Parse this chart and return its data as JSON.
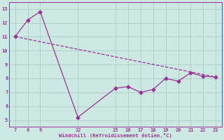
{
  "line1_x": [
    7,
    8,
    9,
    12,
    15,
    16,
    17,
    18,
    19,
    20,
    21,
    22,
    23
  ],
  "line1_y": [
    11.0,
    12.2,
    12.8,
    5.2,
    7.3,
    7.4,
    7.0,
    7.2,
    8.0,
    7.8,
    8.4,
    8.15,
    8.1
  ],
  "line2_x": [
    7,
    23
  ],
  "line2_y": [
    11.0,
    8.1
  ],
  "color": "#993399",
  "bg_color": "#cce8e0",
  "grid_color": "#aacccc",
  "xlabel": "Windchill (Refroidissement éolien,°C)",
  "xlim": [
    6.5,
    23.5
  ],
  "ylim": [
    4.5,
    13.5
  ],
  "xticks": [
    7,
    8,
    9,
    12,
    15,
    16,
    17,
    18,
    19,
    20,
    21,
    22,
    23
  ],
  "yticks": [
    5,
    6,
    7,
    8,
    9,
    10,
    11,
    12,
    13
  ],
  "marker": "D",
  "markersize": 2.5,
  "linewidth": 0.9
}
